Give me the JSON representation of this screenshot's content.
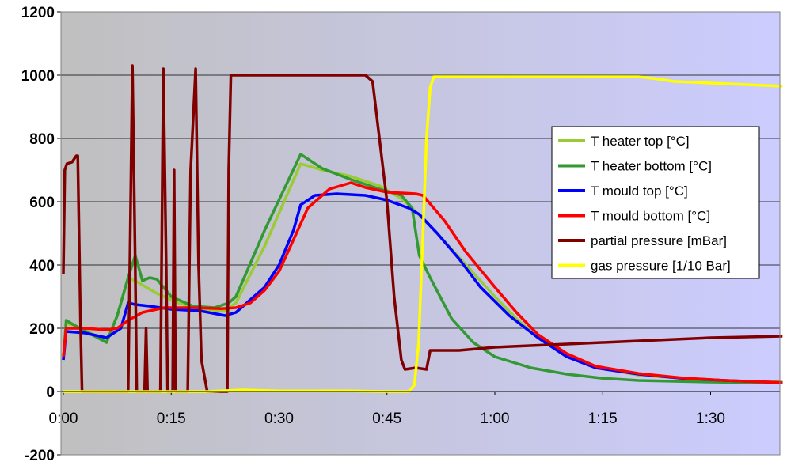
{
  "chart_data": {
    "type": "line",
    "title": "",
    "xlabel": "",
    "ylabel": "",
    "ylim": [
      -200,
      1200
    ],
    "yticks": [
      -200,
      0,
      200,
      400,
      600,
      800,
      1000,
      1200
    ],
    "xlim_minutes": [
      0,
      100
    ],
    "xticks": [
      {
        "minutes": 0,
        "label": "0:00"
      },
      {
        "minutes": 15,
        "label": "0:15"
      },
      {
        "minutes": 30,
        "label": "0:30"
      },
      {
        "minutes": 45,
        "label": "0:45"
      },
      {
        "minutes": 60,
        "label": "1:00"
      },
      {
        "minutes": 75,
        "label": "1:15"
      },
      {
        "minutes": 90,
        "label": "1:30"
      }
    ],
    "grid": "horizontal",
    "legend_position": "right",
    "plot_background": {
      "from": "#c0c0c0",
      "to": "#ccccff"
    },
    "series": [
      {
        "name": "T heater top [°C]",
        "color": "#99cc33",
        "points": [
          [
            0,
            100
          ],
          [
            0.4,
            215
          ],
          [
            1.5,
            210
          ],
          [
            6,
            160
          ],
          [
            7.5,
            240
          ],
          [
            9,
            360
          ],
          [
            10,
            350
          ],
          [
            13,
            310
          ],
          [
            16,
            280
          ],
          [
            19,
            260
          ],
          [
            22.5,
            255
          ],
          [
            24,
            280
          ],
          [
            28,
            460
          ],
          [
            33,
            720
          ],
          [
            36,
            700
          ],
          [
            40,
            680
          ],
          [
            44,
            650
          ],
          [
            47,
            610
          ],
          [
            48.5,
            580
          ],
          [
            52,
            500
          ],
          [
            56,
            400
          ],
          [
            60,
            300
          ],
          [
            63,
            230
          ],
          [
            66,
            170
          ],
          [
            70,
            110
          ],
          [
            75,
            72
          ],
          [
            80,
            52
          ],
          [
            86,
            42
          ],
          [
            92,
            35
          ],
          [
            100,
            30
          ]
        ]
      },
      {
        "name": "T heater bottom [°C]",
        "color": "#339933",
        "points": [
          [
            0,
            100
          ],
          [
            0.4,
            225
          ],
          [
            1.5,
            210
          ],
          [
            6,
            155
          ],
          [
            7.5,
            240
          ],
          [
            9,
            360
          ],
          [
            10,
            430
          ],
          [
            11,
            350
          ],
          [
            12,
            360
          ],
          [
            13,
            355
          ],
          [
            15,
            300
          ],
          [
            18,
            270
          ],
          [
            21,
            265
          ],
          [
            23,
            280
          ],
          [
            24,
            300
          ],
          [
            28,
            510
          ],
          [
            33,
            750
          ],
          [
            36,
            705
          ],
          [
            40,
            670
          ],
          [
            44,
            640
          ],
          [
            47,
            620
          ],
          [
            48.5,
            580
          ],
          [
            49.5,
            430
          ],
          [
            51,
            360
          ],
          [
            54,
            230
          ],
          [
            57,
            155
          ],
          [
            60,
            110
          ],
          [
            65,
            75
          ],
          [
            70,
            55
          ],
          [
            75,
            42
          ],
          [
            80,
            35
          ],
          [
            90,
            30
          ],
          [
            100,
            27
          ]
        ]
      },
      {
        "name": "T mould top [°C]",
        "color": "#0000ff",
        "points": [
          [
            0,
            100
          ],
          [
            0.4,
            190
          ],
          [
            3,
            185
          ],
          [
            6,
            170
          ],
          [
            8,
            200
          ],
          [
            9,
            280
          ],
          [
            10,
            275
          ],
          [
            12,
            270
          ],
          [
            15,
            260
          ],
          [
            19,
            255
          ],
          [
            22.5,
            240
          ],
          [
            24,
            250
          ],
          [
            26,
            290
          ],
          [
            28,
            330
          ],
          [
            30,
            400
          ],
          [
            32,
            510
          ],
          [
            33,
            590
          ],
          [
            35,
            620
          ],
          [
            38,
            625
          ],
          [
            42,
            620
          ],
          [
            45,
            605
          ],
          [
            48,
            580
          ],
          [
            49.5,
            560
          ],
          [
            52,
            500
          ],
          [
            55,
            420
          ],
          [
            58,
            330
          ],
          [
            62,
            240
          ],
          [
            66,
            170
          ],
          [
            70,
            110
          ],
          [
            74,
            75
          ],
          [
            80,
            55
          ],
          [
            86,
            42
          ],
          [
            92,
            35
          ],
          [
            100,
            28
          ]
        ]
      },
      {
        "name": "T mould bottom [°C]",
        "color": "#ff0000",
        "points": [
          [
            0,
            110
          ],
          [
            0.4,
            200
          ],
          [
            3,
            200
          ],
          [
            6,
            195
          ],
          [
            7.5,
            200
          ],
          [
            9,
            225
          ],
          [
            11,
            250
          ],
          [
            14,
            265
          ],
          [
            18,
            265
          ],
          [
            22,
            262
          ],
          [
            24,
            265
          ],
          [
            26,
            280
          ],
          [
            28,
            320
          ],
          [
            30,
            380
          ],
          [
            32,
            480
          ],
          [
            34,
            580
          ],
          [
            37,
            640
          ],
          [
            40,
            660
          ],
          [
            42,
            645
          ],
          [
            45,
            630
          ],
          [
            49,
            625
          ],
          [
            50,
            620
          ],
          [
            53,
            540
          ],
          [
            56,
            440
          ],
          [
            60,
            330
          ],
          [
            63,
            250
          ],
          [
            66,
            180
          ],
          [
            70,
            120
          ],
          [
            74,
            80
          ],
          [
            80,
            57
          ],
          [
            86,
            43
          ],
          [
            92,
            35
          ],
          [
            100,
            28
          ]
        ]
      },
      {
        "name": "partial pressure [mBar]",
        "color": "#800000",
        "points": [
          [
            0,
            370
          ],
          [
            0.2,
            700
          ],
          [
            0.5,
            720
          ],
          [
            1.2,
            725
          ],
          [
            1.8,
            745
          ],
          [
            2,
            745
          ],
          [
            2.4,
            200
          ],
          [
            2.6,
            0
          ],
          [
            9,
            0
          ],
          [
            9.3,
            500
          ],
          [
            9.6,
            1030
          ],
          [
            10,
            400
          ],
          [
            10.2,
            0
          ],
          [
            11.3,
            0
          ],
          [
            11.5,
            200
          ],
          [
            11.7,
            0
          ],
          [
            13.5,
            0
          ],
          [
            13.9,
            1020
          ],
          [
            14.3,
            400
          ],
          [
            14.5,
            0
          ],
          [
            15.2,
            0
          ],
          [
            15.4,
            700
          ],
          [
            15.6,
            0
          ],
          [
            17.3,
            0
          ],
          [
            17.7,
            700
          ],
          [
            18.4,
            1020
          ],
          [
            18.8,
            400
          ],
          [
            19.2,
            100
          ],
          [
            20,
            0
          ],
          [
            22.8,
            0
          ],
          [
            23,
            700
          ],
          [
            23.3,
            1000
          ],
          [
            26,
            1000
          ],
          [
            30,
            1000
          ],
          [
            36,
            1000
          ],
          [
            42,
            1000
          ],
          [
            43,
            980
          ],
          [
            45,
            600
          ],
          [
            46,
            300
          ],
          [
            47,
            100
          ],
          [
            47.5,
            70
          ],
          [
            49,
            75
          ],
          [
            50.5,
            70
          ],
          [
            51,
            130
          ],
          [
            55,
            130
          ],
          [
            60,
            140
          ],
          [
            70,
            150
          ],
          [
            80,
            160
          ],
          [
            90,
            170
          ],
          [
            100,
            175
          ]
        ]
      },
      {
        "name": "gas pressure [1/10 Bar]",
        "color": "#ffff00",
        "points": [
          [
            0,
            0
          ],
          [
            10,
            0
          ],
          [
            20,
            0
          ],
          [
            25,
            5
          ],
          [
            30,
            2
          ],
          [
            40,
            2
          ],
          [
            45,
            0
          ],
          [
            48,
            0
          ],
          [
            48.8,
            20
          ],
          [
            49.4,
            150
          ],
          [
            50,
            500
          ],
          [
            50.5,
            800
          ],
          [
            51,
            960
          ],
          [
            51.5,
            995
          ],
          [
            55,
            995
          ],
          [
            60,
            995
          ],
          [
            65,
            995
          ],
          [
            70,
            995
          ],
          [
            75,
            995
          ],
          [
            80,
            995
          ],
          [
            82,
            990
          ],
          [
            85,
            980
          ],
          [
            90,
            975
          ],
          [
            95,
            970
          ],
          [
            100,
            965
          ]
        ]
      }
    ]
  }
}
